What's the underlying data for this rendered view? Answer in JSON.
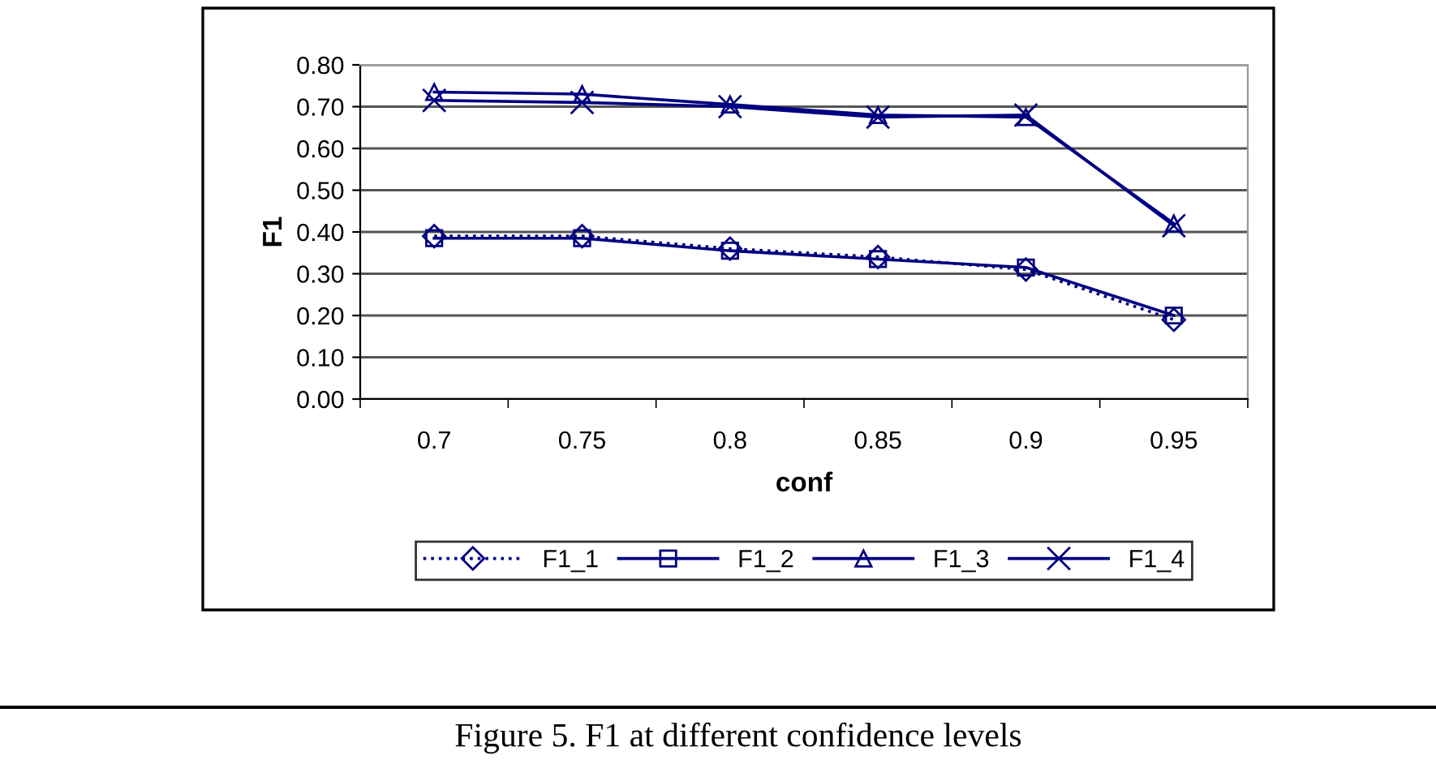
{
  "chart_data": {
    "type": "line",
    "xlabel": "conf",
    "ylabel": "F1",
    "categories": [
      "0.7",
      "0.75",
      "0.8",
      "0.85",
      "0.9",
      "0.95"
    ],
    "series": [
      {
        "name": "F1_1",
        "color": "#000080",
        "marker": "diamond",
        "line_style": "dotted",
        "values": [
          0.39,
          0.39,
          0.36,
          0.34,
          0.31,
          0.19
        ]
      },
      {
        "name": "F1_2",
        "color": "#000080",
        "marker": "square",
        "line_style": "solid",
        "values": [
          0.385,
          0.385,
          0.355,
          0.335,
          0.315,
          0.2
        ]
      },
      {
        "name": "F1_3",
        "color": "#000080",
        "marker": "triangle",
        "line_style": "solid",
        "values": [
          0.735,
          0.73,
          0.705,
          0.68,
          0.675,
          0.42
        ]
      },
      {
        "name": "F1_4",
        "color": "#000080",
        "marker": "cross",
        "line_style": "solid",
        "values": [
          0.715,
          0.71,
          0.7,
          0.675,
          0.68,
          0.415
        ]
      }
    ],
    "ylim": [
      0,
      0.8
    ],
    "yticks": [
      {
        "value": 0,
        "label": "0.00"
      },
      {
        "value": 0.1,
        "label": "0.10"
      },
      {
        "value": 0.2,
        "label": "0.20"
      },
      {
        "value": 0.3,
        "label": "0.30"
      },
      {
        "value": 0.4,
        "label": "0.40"
      },
      {
        "value": 0.5,
        "label": "0.50"
      },
      {
        "value": 0.6,
        "label": "0.60"
      },
      {
        "value": 0.7,
        "label": "0.70"
      },
      {
        "value": 0.8,
        "label": "0.80"
      }
    ],
    "grid": "y",
    "legend": "bottom",
    "annotations": [
      "Figure 5. F1 at different confidence levels"
    ]
  }
}
